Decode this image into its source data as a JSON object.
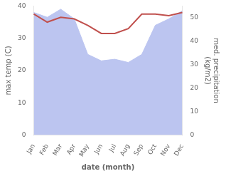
{
  "chart_data": {
    "type": "line",
    "categories": [
      "Jan",
      "Feb",
      "Mar",
      "Apr",
      "May",
      "Jun",
      "Jul",
      "Aug",
      "Sep",
      "Oct",
      "Nov",
      "Dec"
    ],
    "series": [
      {
        "type": "area",
        "color": "#bcc5f0",
        "values": [
          38.0,
          36.5,
          39.0,
          36.0,
          25.0,
          23.0,
          23.5,
          22.5,
          25.0,
          34.0,
          36.0,
          38.5
        ]
      },
      {
        "type": "line",
        "color": "#c0504d",
        "values": [
          37.5,
          35.0,
          36.5,
          36.0,
          34.0,
          31.5,
          31.5,
          33.0,
          37.5,
          37.5,
          37.0,
          38.0
        ]
      }
    ],
    "xlabel": "date (month)",
    "ylabel": "max temp (C)",
    "y2label": "med. precipitation\n(kg/m2)",
    "ylim": [
      0,
      40
    ],
    "yticks": [
      0,
      10,
      20,
      30,
      40
    ],
    "y2lim": [
      0,
      55
    ],
    "y2ticks": [
      0,
      10,
      20,
      30,
      40,
      50
    ],
    "grid": false
  }
}
